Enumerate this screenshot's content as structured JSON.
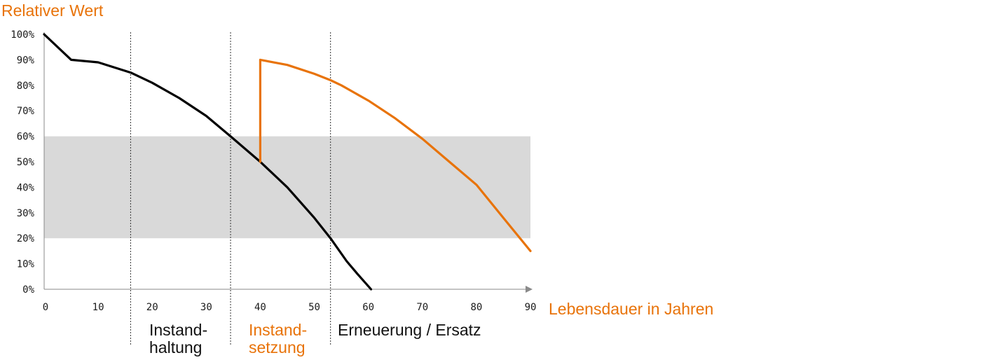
{
  "colors": {
    "accent": "#e8730a",
    "original": "#000000",
    "band": "#d9d9d9",
    "axis": "#8a8a8a"
  },
  "labels": {
    "y_title": "Relativer Wert",
    "x_title": "Lebensdauer in Jahren",
    "phases": [
      {
        "id": "instandhaltung",
        "line1": "Instand-",
        "line2": "haltung",
        "color": "black"
      },
      {
        "id": "instandsetzung",
        "line1": "Instand-",
        "line2": "setzung",
        "color": "accent"
      },
      {
        "id": "erneuerung",
        "line1": "Erneuerung / Ersatz",
        "line2": "",
        "color": "black"
      }
    ]
  },
  "chart_data": {
    "type": "line",
    "xlabel": "Lebensdauer in Jahren",
    "ylabel": "Relativer Wert",
    "xlim": [
      0,
      90
    ],
    "ylim": [
      0,
      100
    ],
    "x_ticks": [
      "0",
      "10",
      "20",
      "30",
      "40",
      "50",
      "60",
      "70",
      "80",
      "90"
    ],
    "y_ticks": [
      "0%",
      "10%",
      "20%",
      "30%",
      "40%",
      "50%",
      "60%",
      "70%",
      "80%",
      "90%",
      "100%"
    ],
    "band": {
      "y_from": 20,
      "y_to": 60
    },
    "phase_boundaries": [
      16,
      34.5,
      53
    ],
    "series": [
      {
        "key": "original",
        "x": [
          0,
          5,
          10,
          16,
          20,
          25,
          30,
          34.5,
          40,
          45,
          50,
          53,
          56,
          58,
          60.5
        ],
        "y": [
          100,
          90,
          89,
          85,
          81,
          75,
          68,
          60,
          50,
          40,
          28,
          20,
          11,
          6,
          0
        ]
      },
      {
        "key": "renewed",
        "x": [
          40,
          40,
          45,
          50,
          53,
          55,
          60,
          65,
          70,
          75,
          80,
          85,
          90
        ],
        "y": [
          50,
          90,
          88,
          84.5,
          82,
          80,
          74,
          67,
          59,
          50,
          41,
          28,
          15
        ]
      }
    ]
  }
}
